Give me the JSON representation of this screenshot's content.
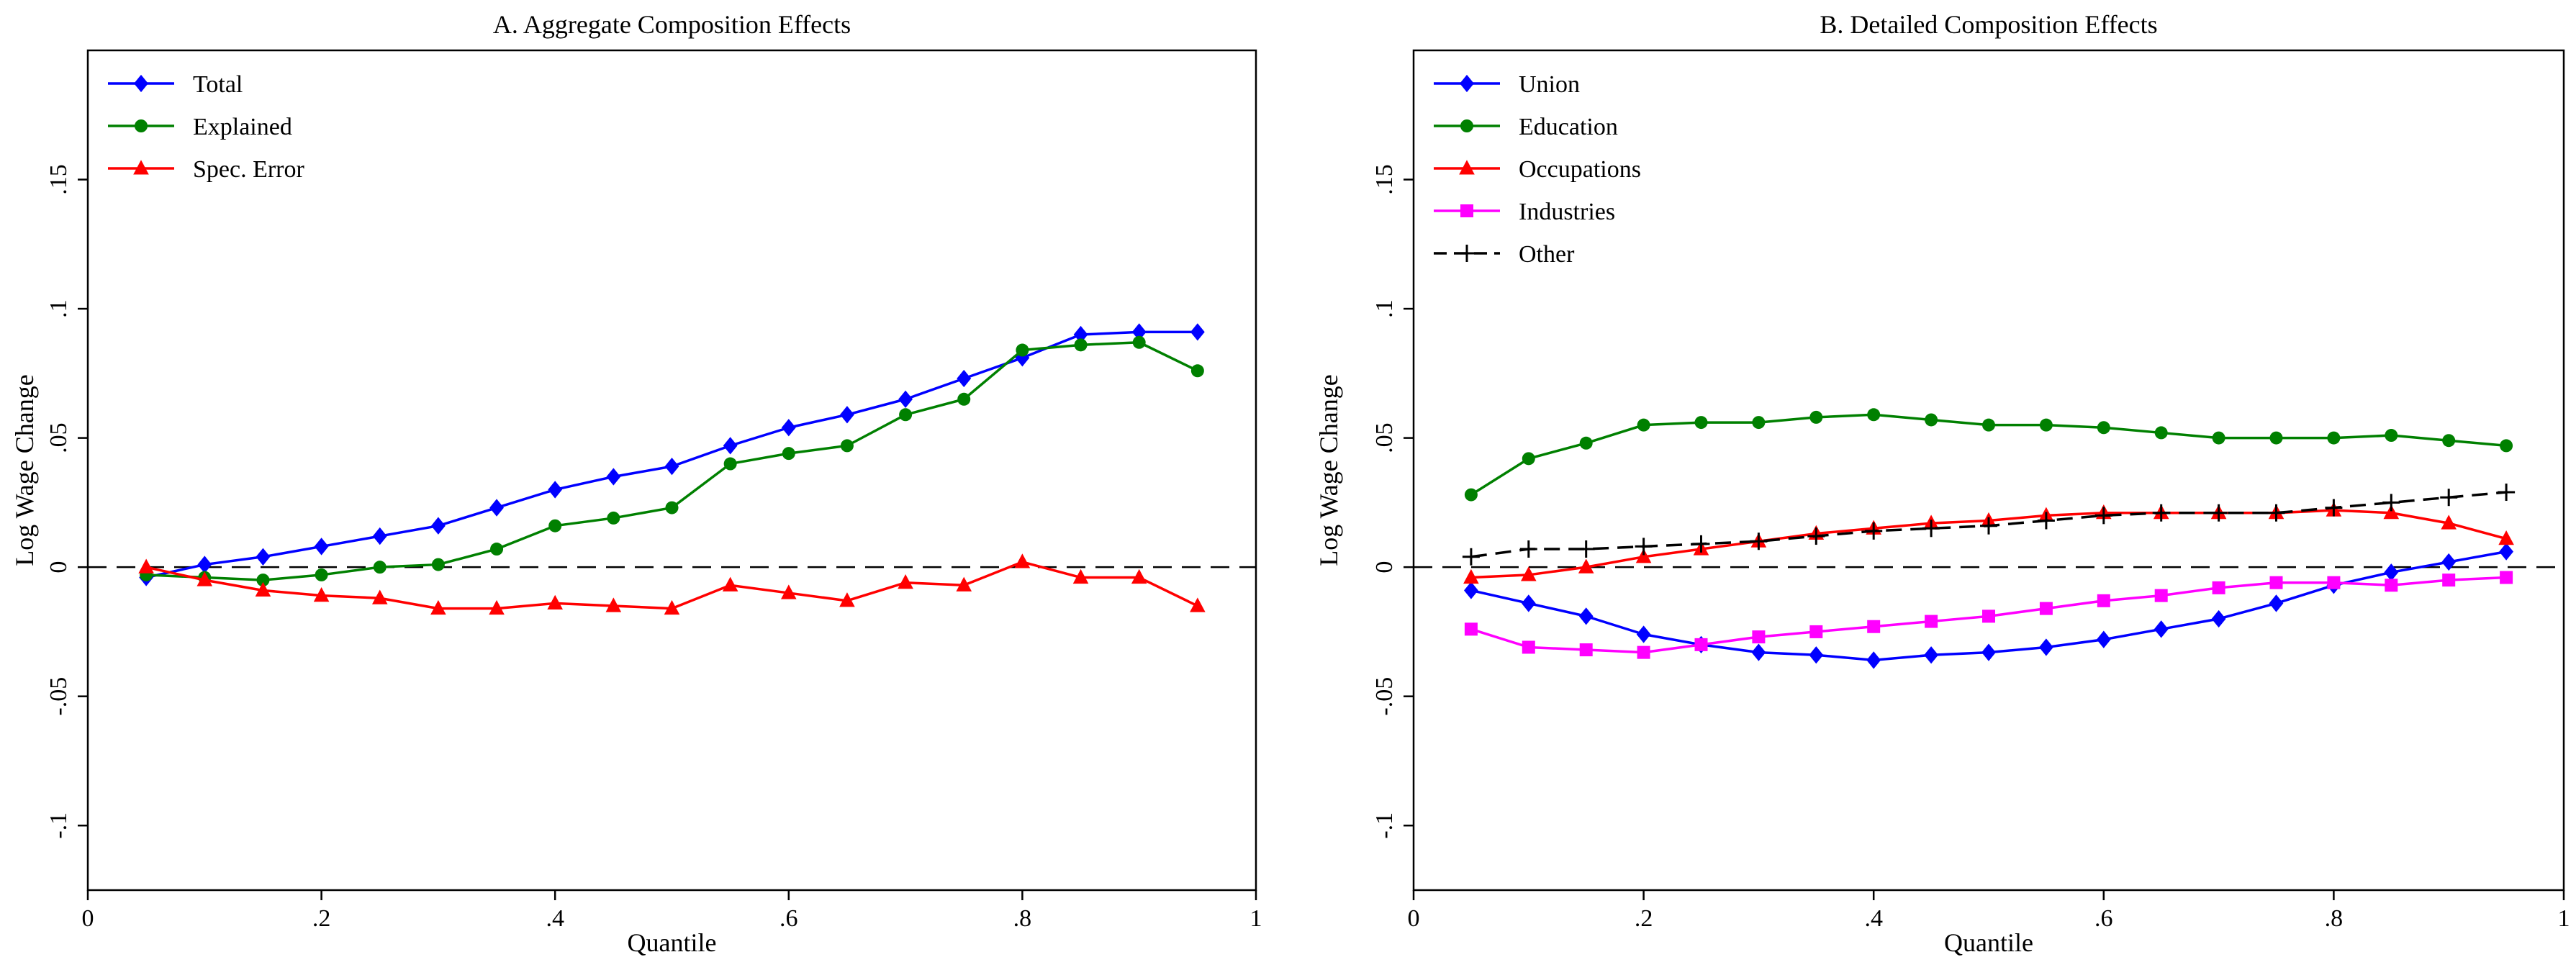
{
  "chart_data": [
    {
      "type": "line",
      "title": "A. Aggregate Composition Effects",
      "xlabel": "Quantile",
      "ylabel": "Log Wage Change",
      "xlim": [
        0,
        1
      ],
      "ylim": [
        -0.125,
        0.2
      ],
      "xticks": [
        0,
        0.2,
        0.4,
        0.6,
        0.8,
        1
      ],
      "xtick_labels": [
        "0",
        ".2",
        ".4",
        ".6",
        ".8",
        "1"
      ],
      "yticks": [
        -0.1,
        -0.05,
        0,
        0.05,
        0.1,
        0.15
      ],
      "ytick_labels": [
        "-.1",
        "-.05",
        "0",
        ".05",
        ".1",
        ".15"
      ],
      "zero_line": true,
      "grid": false,
      "legend_position": "top-left",
      "x": [
        0.05,
        0.1,
        0.15,
        0.2,
        0.25,
        0.3,
        0.35,
        0.4,
        0.45,
        0.5,
        0.55,
        0.6,
        0.65,
        0.7,
        0.75,
        0.8,
        0.85,
        0.9,
        0.95
      ],
      "series": [
        {
          "name": "Total",
          "color": "#0000ff",
          "marker": "diamond",
          "dash": "solid",
          "values": [
            -0.004,
            0.001,
            0.004,
            0.008,
            0.012,
            0.016,
            0.023,
            0.03,
            0.035,
            0.039,
            0.047,
            0.054,
            0.059,
            0.065,
            0.073,
            0.081,
            0.09,
            0.091,
            0.091
          ]
        },
        {
          "name": "Explained",
          "color": "#008000",
          "marker": "circle",
          "dash": "solid",
          "values": [
            -0.003,
            -0.004,
            -0.005,
            -0.003,
            0.0,
            0.001,
            0.007,
            0.016,
            0.019,
            0.023,
            0.04,
            0.044,
            0.047,
            0.059,
            0.065,
            0.084,
            0.086,
            0.087,
            0.076
          ]
        },
        {
          "name": "Spec. Error",
          "color": "#ff0000",
          "marker": "triangle",
          "dash": "solid",
          "values": [
            0.0,
            -0.005,
            -0.009,
            -0.011,
            -0.012,
            -0.016,
            -0.016,
            -0.014,
            -0.015,
            -0.016,
            -0.007,
            -0.01,
            -0.013,
            -0.006,
            -0.007,
            0.002,
            -0.004,
            -0.004,
            -0.015
          ]
        }
      ]
    },
    {
      "type": "line",
      "title": "B. Detailed Composition Effects",
      "xlabel": "Quantile",
      "ylabel": "Log Wage Change",
      "xlim": [
        0,
        1
      ],
      "ylim": [
        -0.125,
        0.2
      ],
      "xticks": [
        0,
        0.2,
        0.4,
        0.6,
        0.8,
        1
      ],
      "xtick_labels": [
        "0",
        ".2",
        ".4",
        ".6",
        ".8",
        "1"
      ],
      "yticks": [
        -0.1,
        -0.05,
        0,
        0.05,
        0.1,
        0.15
      ],
      "ytick_labels": [
        "-.1",
        "-.05",
        "0",
        ".05",
        ".1",
        ".15"
      ],
      "zero_line": true,
      "grid": false,
      "legend_position": "top-left",
      "x": [
        0.05,
        0.1,
        0.15,
        0.2,
        0.25,
        0.3,
        0.35,
        0.4,
        0.45,
        0.5,
        0.55,
        0.6,
        0.65,
        0.7,
        0.75,
        0.8,
        0.85,
        0.9,
        0.95
      ],
      "series": [
        {
          "name": "Union",
          "color": "#0000ff",
          "marker": "diamond",
          "dash": "solid",
          "values": [
            -0.009,
            -0.014,
            -0.019,
            -0.026,
            -0.03,
            -0.033,
            -0.034,
            -0.036,
            -0.034,
            -0.033,
            -0.031,
            -0.028,
            -0.024,
            -0.02,
            -0.014,
            -0.007,
            -0.002,
            0.002,
            0.006
          ]
        },
        {
          "name": "Education",
          "color": "#008000",
          "marker": "circle",
          "dash": "solid",
          "values": [
            0.028,
            0.042,
            0.048,
            0.055,
            0.056,
            0.056,
            0.058,
            0.059,
            0.057,
            0.055,
            0.055,
            0.054,
            0.052,
            0.05,
            0.05,
            0.05,
            0.051,
            0.049,
            0.047
          ]
        },
        {
          "name": "Occupations",
          "color": "#ff0000",
          "marker": "triangle",
          "dash": "solid",
          "values": [
            -0.004,
            -0.003,
            0.0,
            0.004,
            0.007,
            0.01,
            0.013,
            0.015,
            0.017,
            0.018,
            0.02,
            0.021,
            0.021,
            0.021,
            0.021,
            0.022,
            0.021,
            0.017,
            0.011
          ]
        },
        {
          "name": "Industries",
          "color": "#ff00ff",
          "marker": "square",
          "dash": "solid",
          "values": [
            -0.024,
            -0.031,
            -0.032,
            -0.033,
            -0.03,
            -0.027,
            -0.025,
            -0.023,
            -0.021,
            -0.019,
            -0.016,
            -0.013,
            -0.011,
            -0.008,
            -0.006,
            -0.006,
            -0.007,
            -0.005,
            -0.004
          ]
        },
        {
          "name": "Other",
          "color": "#000000",
          "marker": "plus",
          "dash": "dashed",
          "values": [
            0.004,
            0.007,
            0.007,
            0.008,
            0.009,
            0.01,
            0.012,
            0.014,
            0.015,
            0.016,
            0.018,
            0.02,
            0.021,
            0.021,
            0.021,
            0.023,
            0.025,
            0.027,
            0.029
          ]
        }
      ]
    }
  ]
}
